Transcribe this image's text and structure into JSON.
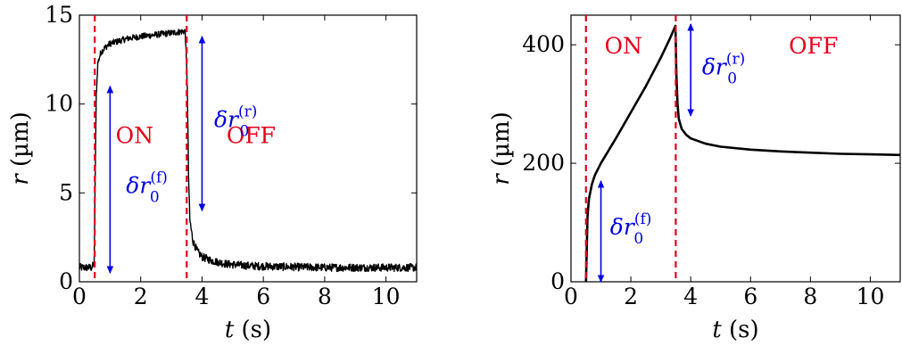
{
  "chart_data": [
    {
      "type": "line",
      "title": "",
      "xlabel": "t (s)",
      "ylabel": "r (µm)",
      "xlim": [
        0,
        11
      ],
      "ylim": [
        0,
        15
      ],
      "xticks": [
        0,
        2,
        4,
        6,
        8,
        10
      ],
      "yticks": [
        0,
        5,
        10,
        15
      ],
      "grid": false,
      "noisy": true,
      "series": [
        {
          "color": "#000000",
          "x": [
            0,
            0.4,
            0.48,
            0.52,
            0.55,
            0.6,
            0.7,
            0.85,
            1.0,
            1.3,
            1.6,
            2.0,
            2.5,
            3.0,
            3.45,
            3.52,
            3.56,
            3.6,
            3.7,
            3.85,
            4.0,
            4.3,
            4.8,
            5.5,
            6.5,
            8.0,
            9.5,
            11.0
          ],
          "y": [
            0.8,
            0.8,
            1.0,
            6.5,
            10.5,
            12.3,
            12.9,
            13.2,
            13.4,
            13.55,
            13.7,
            13.8,
            13.9,
            14.0,
            14.1,
            11.0,
            6.0,
            3.5,
            2.3,
            1.7,
            1.4,
            1.2,
            1.0,
            0.9,
            0.85,
            0.8,
            0.8,
            0.8
          ]
        }
      ],
      "vlines": [
        {
          "x": 0.5,
          "color": "#e3001b",
          "style": "dashed"
        },
        {
          "x": 3.5,
          "color": "#e3001b",
          "style": "dashed"
        }
      ],
      "arrows": [
        {
          "x": 1.0,
          "y_from": 0.5,
          "y_to": 11.0,
          "color": "#0000e0"
        },
        {
          "x": 4.0,
          "y_from": 4.0,
          "y_to": 13.8,
          "color": "#0000e0"
        }
      ],
      "annotations": [
        {
          "id": "on",
          "base": "ON",
          "sup": "",
          "color": "#e3001b",
          "x": 1.8,
          "y": 7.8
        },
        {
          "id": "off",
          "base": "OFF",
          "sup": "",
          "color": "#e3001b",
          "x": 5.6,
          "y": 7.8
        },
        {
          "id": "df",
          "base": "δr",
          "sub": "0",
          "sup": "(f)",
          "color": "#0000e0",
          "x": 2.2,
          "y": 5.0
        },
        {
          "id": "dr",
          "base": "δr",
          "sub": "0",
          "sup": "(r)",
          "color": "#0000e0",
          "x": 5.1,
          "y": 8.7
        }
      ]
    },
    {
      "type": "line",
      "title": "",
      "xlabel": "t (s)",
      "ylabel": "r (µm)",
      "xlim": [
        0,
        11
      ],
      "ylim": [
        0,
        450
      ],
      "xticks": [
        0,
        2,
        4,
        6,
        8,
        10
      ],
      "yticks": [
        0,
        200,
        400
      ],
      "grid": false,
      "noisy": false,
      "series": [
        {
          "color": "#000000",
          "x": [
            0.5,
            0.55,
            0.6,
            0.7,
            0.8,
            1.0,
            1.2,
            1.5,
            2.0,
            2.5,
            3.0,
            3.3,
            3.49,
            3.52,
            3.56,
            3.6,
            3.7,
            3.85,
            4.0,
            4.5,
            5.0,
            6.0,
            7.0,
            8.0,
            9.0,
            10.0,
            11.0
          ],
          "y": [
            0,
            110,
            140,
            165,
            180,
            200,
            217,
            242,
            286,
            330,
            378,
            410,
            432,
            350,
            300,
            275,
            258,
            248,
            242,
            233,
            228,
            223,
            220,
            218,
            216,
            215,
            214
          ]
        }
      ],
      "vlines": [
        {
          "x": 0.5,
          "color": "#e3001b",
          "style": "dashed"
        },
        {
          "x": 3.5,
          "color": "#e3001b",
          "style": "dashed"
        }
      ],
      "arrows": [
        {
          "x": 1.0,
          "y_from": 0,
          "y_to": 170,
          "color": "#0000e0"
        },
        {
          "x": 4.0,
          "y_from": 280,
          "y_to": 435,
          "color": "#0000e0"
        }
      ],
      "annotations": [
        {
          "id": "on",
          "base": "ON",
          "sup": "",
          "color": "#e3001b",
          "x": 1.75,
          "y": 385
        },
        {
          "id": "off",
          "base": "OFF",
          "sup": "",
          "color": "#e3001b",
          "x": 8.1,
          "y": 385
        },
        {
          "id": "df",
          "base": "δr",
          "sub": "0",
          "sup": "(f)",
          "color": "#0000e0",
          "x": 2.0,
          "y": 80
        },
        {
          "id": "dr",
          "base": "δr",
          "sub": "0",
          "sup": "(r)",
          "color": "#0000e0",
          "x": 5.1,
          "y": 350
        }
      ]
    }
  ]
}
